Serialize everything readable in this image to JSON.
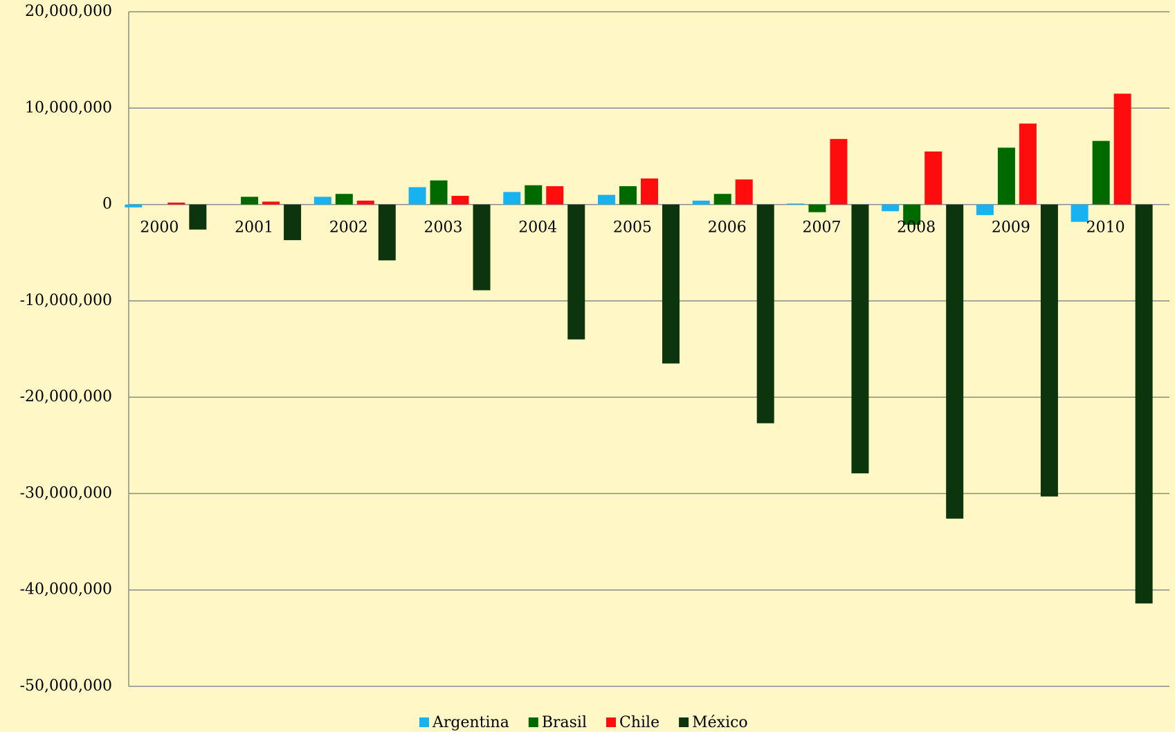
{
  "chart_data": {
    "type": "bar",
    "categories": [
      "2000",
      "2001",
      "2002",
      "2003",
      "2004",
      "2005",
      "2006",
      "2007",
      "2008",
      "2009",
      "2010"
    ],
    "series": [
      {
        "name": "Argentina",
        "color": "#19b2f0",
        "values": [
          -300000,
          0,
          800000,
          1800000,
          1300000,
          1000000,
          400000,
          100000,
          -700000,
          -1100000,
          -1800000
        ]
      },
      {
        "name": "Brasil",
        "color": "#006a00",
        "values": [
          0,
          800000,
          1100000,
          2500000,
          2000000,
          1900000,
          1100000,
          -800000,
          -2100000,
          5900000,
          6600000
        ]
      },
      {
        "name": "Chile",
        "color": "#ff0d0d",
        "values": [
          200000,
          300000,
          400000,
          900000,
          1900000,
          2700000,
          2600000,
          6800000,
          5500000,
          8400000,
          11500000
        ]
      },
      {
        "name": "México",
        "color": "#0d350d",
        "values": [
          -2600000,
          -3700000,
          -5800000,
          -8900000,
          -14000000,
          -16500000,
          -22700000,
          -27900000,
          -32600000,
          -30300000,
          -41400000
        ]
      }
    ],
    "ylim": [
      -50000000,
      20000000
    ],
    "yticks": [
      {
        "value": -50000000,
        "label": "-50,000,000"
      },
      {
        "value": -40000000,
        "label": "-40,000,000"
      },
      {
        "value": -30000000,
        "label": "-30,000,000"
      },
      {
        "value": -20000000,
        "label": "-20,000,000"
      },
      {
        "value": -10000000,
        "label": "-10,000,000"
      },
      0,
      {
        "value": 10000000,
        "label": "10,000,000"
      },
      {
        "value": 20000000,
        "label": "20,000,000"
      }
    ],
    "grid": true,
    "legend": "bottom"
  }
}
